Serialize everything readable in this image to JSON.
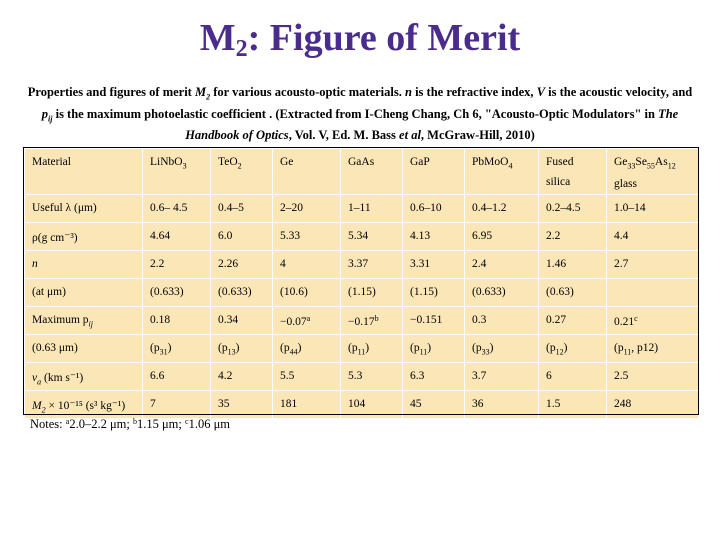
{
  "title": {
    "main": "M",
    "sub": "2",
    "rest": ": Figure of Merit"
  },
  "caption": {
    "p1": "Properties and figures of merit ",
    "m2": "M",
    "m2sub": "2",
    "p2": " for various acousto-optic materials. ",
    "n": "n",
    "p3": " is the refractive index, ",
    "v": "V",
    "p4": " is the acoustic velocity, and ",
    "pij": "p",
    "pijsub": "ij",
    "p5": " is the maximum photoelastic coefficient . (Extracted from I-Cheng Chang, Ch 6, \"Acousto-Optic Modulators\" in ",
    "book": "The Handbook of Optics",
    "p6": ", Vol. V, Ed. M. Bass ",
    "etal": "et al",
    "p7": ", McGraw-Hill, 2010)"
  },
  "table": {
    "header": {
      "label": "Material",
      "cols": [
        "LiNbO",
        "TeO",
        "Ge",
        "GaAs",
        "GaP",
        "PbMoO",
        "Fused",
        "Ge"
      ],
      "subs": [
        "3",
        "2",
        "",
        "",
        "",
        "4",
        "",
        "33"
      ],
      "fused_line2": "silica",
      "chalco_mid1": "Se",
      "chalco_sub2": "55",
      "chalco_mid2": "As",
      "chalco_sub3": "12",
      "chalco_line2": "glass"
    },
    "rows": [
      {
        "label": "Useful λ (μm)",
        "values": [
          "0.6– 4.5",
          "0.4–5",
          "2–20",
          "1–11",
          "0.6–10",
          "0.4–1.2",
          "0.2–4.5",
          "1.0–14"
        ]
      },
      {
        "label": "ρ(g cm⁻³)",
        "values": [
          "4.64",
          "6.0",
          "5.33",
          "5.34",
          "4.13",
          "6.95",
          "2.2",
          "4.4"
        ]
      },
      {
        "label": "n",
        "values": [
          "2.2",
          "2.26",
          "4",
          "3.37",
          "3.31",
          "2.4",
          "1.46",
          "2.7"
        ]
      },
      {
        "label": "(at μm)",
        "values": [
          "(0.633)",
          "(0.633)",
          "(10.6)",
          "(1.15)",
          "(1.15)",
          "(0.633)",
          "(0.63)",
          ""
        ]
      },
      {
        "label": "Maximum  p",
        "label_sub": "ij",
        "values": [
          "0.18",
          "0.34",
          "−0.07",
          "−0.17",
          "−0.151",
          "0.3",
          "0.27",
          "0.21"
        ],
        "sups": [
          "",
          "",
          "a",
          "b",
          "",
          "",
          "",
          "c"
        ]
      },
      {
        "label": "(0.63 μm)",
        "values": [
          "(p",
          "(p",
          "(p",
          "(p",
          "(p",
          "(p",
          "(p",
          "(p"
        ],
        "subs": [
          "31",
          "13",
          "44",
          "11",
          "11",
          "33",
          "12",
          "11"
        ],
        "tails": [
          ")",
          ")",
          ")",
          ")",
          ")",
          ")",
          ")",
          ", p12)"
        ]
      },
      {
        "label": "v",
        "label_sub": "a",
        "label_rest": " (km s⁻¹)",
        "values": [
          "6.6",
          "4.2",
          "5.5",
          "5.3",
          "6.3",
          "3.7",
          "6",
          "2.5"
        ]
      },
      {
        "label": "M",
        "label_sub": "2",
        "label_rest": " × 10⁻¹⁵ (s³ kg⁻¹)",
        "values": [
          "7",
          "35",
          "181",
          "104",
          "45",
          "36",
          "1.5",
          "248"
        ]
      }
    ]
  },
  "notes": {
    "prefix": "Notes: ",
    "a": "a",
    "a_text": "2.0–2.2 μm; ",
    "b": "b",
    "b_text": "1.15 μm; ",
    "c": "c",
    "c_text": "1.06 μm"
  }
}
